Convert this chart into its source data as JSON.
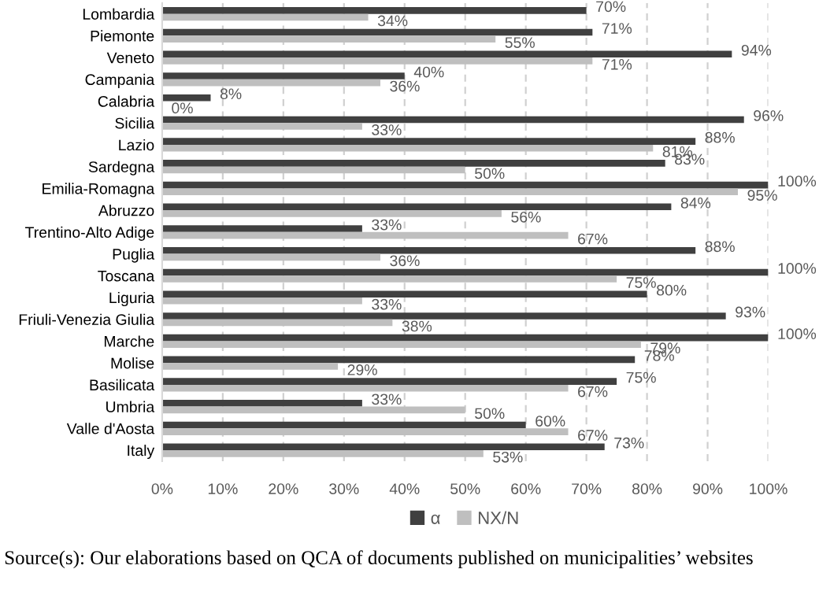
{
  "chart_data": {
    "type": "bar",
    "orientation": "horizontal",
    "categories": [
      "Lombardia",
      "Piemonte",
      "Veneto",
      "Campania",
      "Calabria",
      "Sicilia",
      "Lazio",
      "Sardegna",
      "Emilia-Romagna",
      "Abruzzo",
      "Trentino-Alto Adige",
      "Puglia",
      "Toscana",
      "Liguria",
      "Friuli-Venezia Giulia",
      "Marche",
      "Molise",
      "Basilicata",
      "Umbria",
      "Valle d'Aosta",
      "Italy"
    ],
    "series": [
      {
        "name": "α",
        "color": "#404040",
        "values": [
          70,
          71,
          94,
          40,
          8,
          96,
          88,
          83,
          100,
          84,
          33,
          88,
          100,
          80,
          93,
          100,
          78,
          75,
          33,
          60,
          73
        ],
        "value_labels": [
          "70%",
          "71%",
          "94%",
          "40%",
          "8%",
          "96%",
          "88%",
          "83%",
          "100%",
          "84%",
          "33%",
          "88%",
          "100%",
          "80%",
          "93%",
          "100%",
          "78%",
          "75%",
          "33%",
          "60%",
          "73%"
        ]
      },
      {
        "name": "NX/N",
        "color": "#bfbfbf",
        "values": [
          34,
          55,
          71,
          36,
          0,
          33,
          81,
          50,
          95,
          56,
          67,
          36,
          75,
          33,
          38,
          79,
          29,
          67,
          50,
          67,
          53
        ],
        "value_labels": [
          "34%",
          "55%",
          "71%",
          "36%",
          "0%",
          "33%",
          "81%",
          "50%",
          "95%",
          "56%",
          "67%",
          "36%",
          "75%",
          "33%",
          "38%",
          "79%",
          "29%",
          "67%",
          "50%",
          "67%",
          "53%"
        ]
      }
    ],
    "xlim": [
      0,
      100
    ],
    "xticks": [
      {
        "value": 0,
        "label": "0%"
      },
      {
        "value": 10,
        "label": "10%"
      },
      {
        "value": 20,
        "label": "20%"
      },
      {
        "value": 30,
        "label": "30%"
      },
      {
        "value": 40,
        "label": "40%"
      },
      {
        "value": 50,
        "label": "50%"
      },
      {
        "value": 60,
        "label": "60%"
      },
      {
        "value": 70,
        "label": "70%"
      },
      {
        "value": 80,
        "label": "80%"
      },
      {
        "value": 90,
        "label": "90%"
      },
      {
        "value": 100,
        "label": "100%"
      }
    ],
    "grid": "x",
    "legend": "bottom",
    "annotations": [
      "Source(s): Our elaborations based on QCA of documents published on municipalities’ websites"
    ]
  }
}
